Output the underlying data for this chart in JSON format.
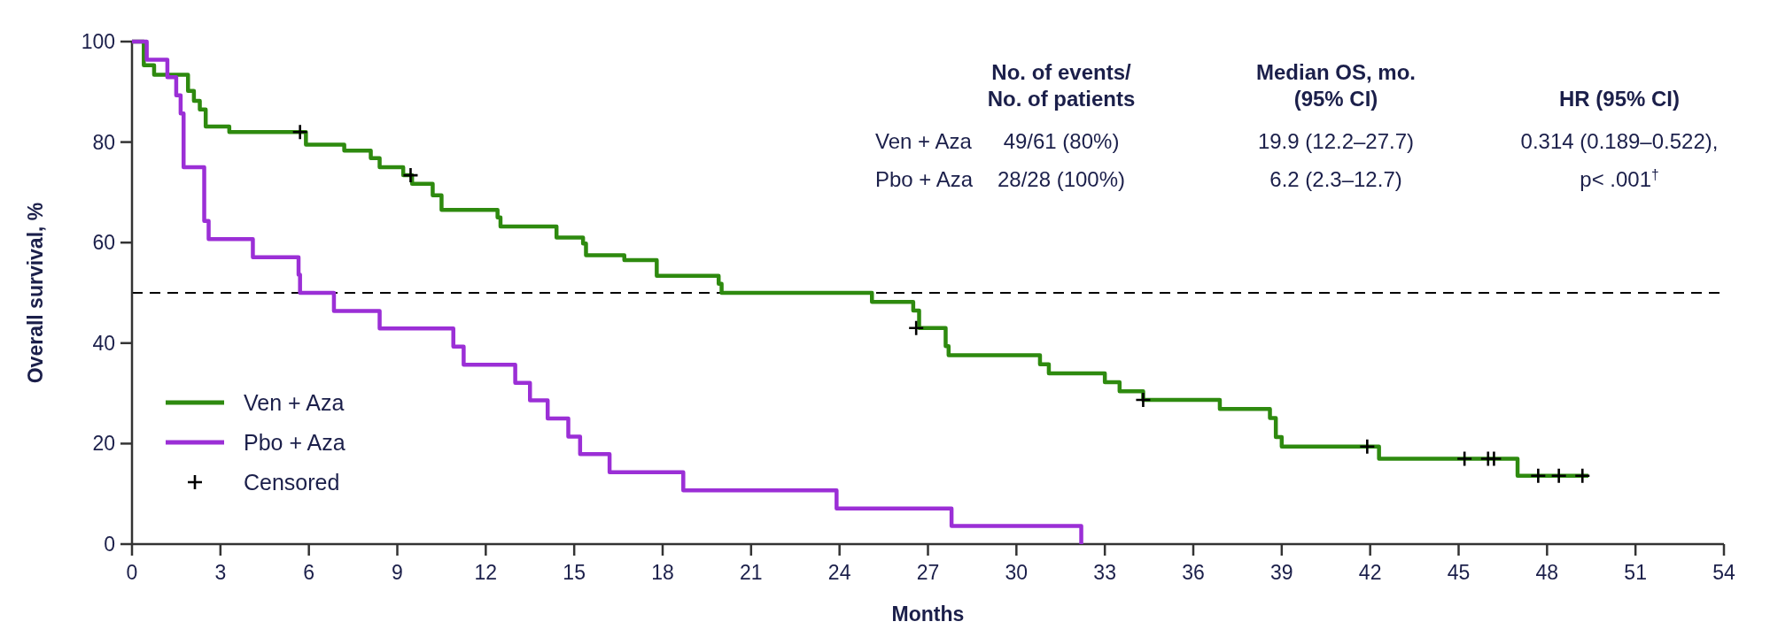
{
  "chart_data": {
    "type": "step",
    "xlabel": "Months",
    "ylabel": "Overall survival, %",
    "xlim": [
      0,
      54
    ],
    "xticks": [
      0,
      3,
      6,
      9,
      12,
      15,
      18,
      21,
      24,
      27,
      30,
      33,
      36,
      39,
      42,
      45,
      48,
      51,
      54
    ],
    "ylim": [
      0,
      100
    ],
    "yticks": [
      0,
      20,
      40,
      60,
      80,
      100
    ],
    "grid": false,
    "legend": "bottom left",
    "series": [
      {
        "name": "Ven + Aza",
        "color": "#2e8a0f",
        "line_style": "solid",
        "marker": "none",
        "x": [
          0,
          0.4,
          0.75,
          1.9,
          2.1,
          2.3,
          2.5,
          3.3,
          5.9,
          7.2,
          8.1,
          8.4,
          9.2,
          9.5,
          10.2,
          10.5,
          12.4,
          12.5,
          14.4,
          15.3,
          15.4,
          16.7,
          17.8,
          19.9,
          20.0,
          25.1,
          26.5,
          26.7,
          27.6,
          27.7,
          30.8,
          31.1,
          33.0,
          33.5,
          34.3,
          36.9,
          38.6,
          38.8,
          39.0,
          42.3,
          47.0,
          49.4
        ],
        "values": [
          100,
          95.3,
          93.4,
          90.2,
          88.2,
          86.5,
          83.1,
          82.0,
          79.5,
          78.3,
          76.8,
          75.0,
          73.4,
          71.7,
          69.4,
          66.5,
          65.0,
          63.2,
          61.0,
          59.8,
          57.5,
          56.5,
          53.4,
          51.8,
          50.0,
          48.2,
          46.5,
          43.0,
          39.4,
          37.6,
          35.8,
          34.0,
          32.2,
          30.4,
          28.7,
          26.9,
          25.1,
          21.3,
          19.4,
          17.0,
          13.6,
          13.6
        ]
      },
      {
        "name": "Pbo + Aza",
        "color": "#9b2fd6",
        "line_style": "solid",
        "marker": "none",
        "x": [
          0,
          0.5,
          1.2,
          1.5,
          1.65,
          1.75,
          2.45,
          2.6,
          4.1,
          5.65,
          5.7,
          6.85,
          8.4,
          10.9,
          11.25,
          13.0,
          13.5,
          14.1,
          14.8,
          15.2,
          16.2,
          18.7,
          23.9,
          27.8,
          32.2
        ],
        "values": [
          100,
          96.4,
          92.9,
          89.3,
          85.7,
          75.0,
          64.3,
          60.7,
          57.1,
          53.6,
          50.0,
          46.4,
          42.9,
          39.3,
          35.7,
          32.1,
          28.6,
          25.0,
          21.4,
          17.9,
          14.3,
          10.7,
          7.1,
          3.6,
          0
        ]
      },
      {
        "name": "Censored",
        "type": "scatter",
        "color": "#000000",
        "marker": "cross",
        "x": [
          5.7,
          9.45,
          26.6,
          34.3,
          41.9,
          45.2,
          46.0,
          46.2,
          47.7,
          48.4,
          49.2
        ],
        "values": [
          82.0,
          73.4,
          43.0,
          28.7,
          19.4,
          17.0,
          17.0,
          17.0,
          13.6,
          13.6,
          13.6
        ]
      }
    ],
    "ref_lines": [
      {
        "axis": "y",
        "value": 50,
        "color": "#000000",
        "line_style": "dashed"
      }
    ],
    "annotations": [
      "No. of events/\nNo. of patients",
      "Median OS, mo.\n(95% CI)",
      "HR (95% CI)",
      "Ven + Aza",
      "49/61 (80%)",
      "19.9 (12.2–27.7)",
      "0.314 (0.189–0.522),",
      "Pbo + Aza",
      "28/28 (100%)",
      "6.2 (2.3–12.7)",
      "p< .001$^{†}$"
    ]
  }
}
